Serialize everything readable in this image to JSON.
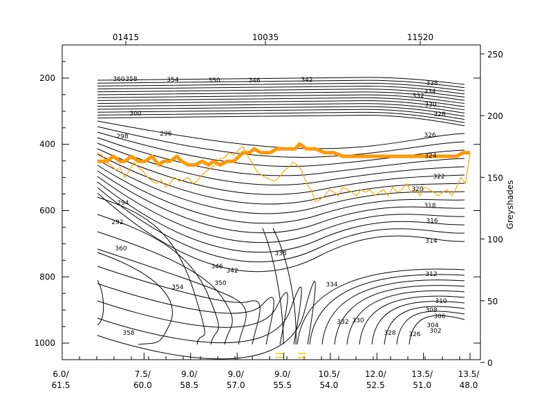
{
  "chart_data": {
    "type": "line",
    "title": "",
    "xlabel": "",
    "ylabel": "",
    "y2label": "Greyshades",
    "top_axis_labels": [
      "01415",
      "10035",
      "11520"
    ],
    "x_tick_labels": [
      {
        "top": "6.0/",
        "bottom": "61.5"
      },
      {
        "top": "7.5/",
        "bottom": "60.0"
      },
      {
        "top": "9.0/",
        "bottom": "58.5"
      },
      {
        "top": "9.0/",
        "bottom": "57.0"
      },
      {
        "top": "9.0/",
        "bottom": "55.5"
      },
      {
        "top": "10.5/",
        "bottom": "54.0"
      },
      {
        "top": "12.0/",
        "bottom": "52.5"
      },
      {
        "top": "13.5/",
        "bottom": "51.0"
      },
      {
        "top": "13.5/",
        "bottom": "48.0"
      }
    ],
    "x_range": [
      0,
      8.2
    ],
    "y_left": {
      "reversed": true,
      "range": [
        1050,
        100
      ],
      "ticks": [
        200,
        400,
        600,
        800,
        1000
      ]
    },
    "y_right": {
      "range": [
        0,
        255
      ],
      "ticks": [
        0,
        50,
        100,
        150,
        200,
        250
      ]
    },
    "contour_labels": [
      "360",
      "358",
      "354",
      "350",
      "346",
      "342",
      "338",
      "334",
      "332",
      "330",
      "328",
      "326",
      "324",
      "322",
      "320",
      "318",
      "316",
      "314",
      "312",
      "310",
      "308",
      "306",
      "304",
      "302",
      "300",
      "298",
      "296",
      "294",
      "292"
    ],
    "series": [
      {
        "role": "thick",
        "color": "#ff9900",
        "x": [
          0,
          0.2,
          0.35,
          0.5,
          0.6,
          0.75,
          0.9,
          1.05,
          1.2,
          1.35,
          1.45,
          1.6,
          1.75,
          1.85,
          2.0,
          2.15,
          2.3,
          2.45,
          2.55,
          2.7,
          2.85,
          3.0,
          3.2,
          3.35,
          3.45,
          3.6,
          3.8,
          3.95,
          4.05,
          4.2,
          4.35,
          4.45,
          4.6,
          4.8,
          5.0,
          5.2,
          5.4,
          5.6,
          5.8,
          6.0,
          6.1,
          6.3,
          6.5,
          6.7,
          6.9,
          7.1,
          7.3,
          7.5,
          7.7,
          7.9,
          8.05,
          8.2
        ],
        "y": [
          163,
          163,
          167,
          163,
          163,
          167,
          163,
          163,
          167,
          160,
          163,
          163,
          167,
          163,
          160,
          160,
          163,
          160,
          163,
          160,
          163,
          163,
          170,
          170,
          173,
          170,
          170,
          173,
          173,
          173,
          173,
          177,
          173,
          173,
          170,
          170,
          167,
          167,
          167,
          167,
          167,
          167,
          167,
          167,
          167,
          167,
          167,
          167,
          167,
          167,
          170,
          170
        ]
      },
      {
        "role": "thin",
        "color": "#ffa500",
        "x": [
          0,
          0.1,
          0.2,
          0.3,
          0.4,
          0.5,
          0.6,
          0.7,
          0.8,
          0.9,
          1.0,
          1.1,
          1.2,
          1.3,
          1.4,
          1.5,
          1.6,
          1.7,
          1.8,
          1.9,
          2.0,
          2.1,
          2.2,
          2.3,
          2.4,
          2.5,
          2.6,
          2.7,
          2.8,
          2.9,
          3.0,
          3.1,
          3.2,
          3.3,
          3.4,
          3.5,
          3.6,
          3.7,
          3.8,
          3.9,
          4.0,
          4.1,
          4.2,
          4.3,
          4.4,
          4.5,
          4.6,
          4.7,
          4.8,
          4.9,
          5.0,
          5.1,
          5.2,
          5.3,
          5.4,
          5.5,
          5.6,
          5.7,
          5.8,
          5.9,
          6.0,
          6.1,
          6.2,
          6.3,
          6.4,
          6.5,
          6.6,
          6.7,
          6.8,
          6.9,
          7.0,
          7.1,
          7.2,
          7.3,
          7.4,
          7.5,
          7.6,
          7.7,
          7.8,
          7.9,
          8.0,
          8.1,
          8.2
        ],
        "y": [
          170,
          168,
          162,
          160,
          156,
          158,
          150,
          155,
          162,
          158,
          155,
          150,
          147,
          145,
          148,
          142,
          145,
          150,
          147,
          148,
          150,
          145,
          147,
          152,
          155,
          158,
          160,
          165,
          166,
          170,
          168,
          172,
          175,
          168,
          162,
          155,
          152,
          150,
          148,
          147,
          150,
          155,
          158,
          162,
          160,
          155,
          145,
          140,
          130,
          132,
          135,
          140,
          138,
          135,
          142,
          140,
          138,
          135,
          140,
          138,
          140,
          135,
          138,
          140,
          135,
          142,
          138,
          140,
          145,
          138,
          140,
          135,
          142,
          140,
          138,
          135,
          138,
          140,
          135,
          142,
          150,
          145,
          170
        ]
      }
    ],
    "bottom_marks": [
      {
        "x": 4.0
      },
      {
        "x": 4.5
      }
    ]
  }
}
